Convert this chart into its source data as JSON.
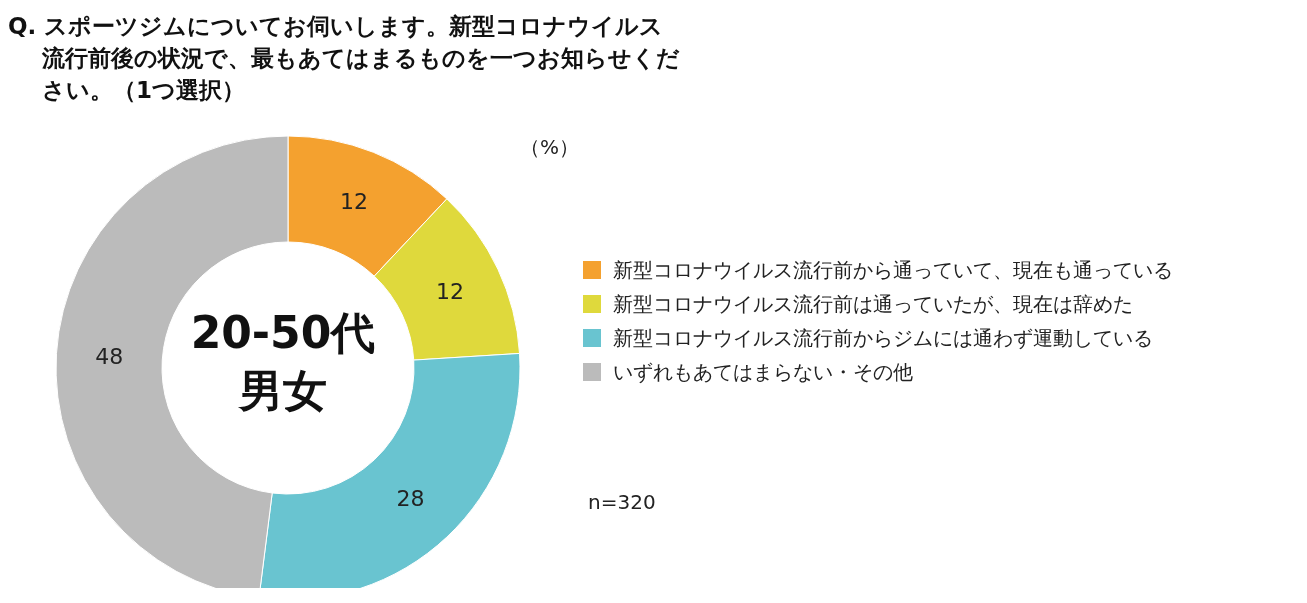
{
  "chart_data": {
    "type": "donut",
    "title": "Q. スポーツジムについてお伺いします。新型コロナウイルス流行前後の状況で、最もあてはまるものを一つお知らせください。（1つ選択）",
    "categories": [
      "新型コロナウイルス流行前から通っていて、現在も通っている",
      "新型コロナウイルス流行前は通っていたが、現在は辞めた",
      "新型コロナウイルス流行前からジムには通わず運動している",
      "いずれもあてはまらない・その他"
    ],
    "values": [
      12,
      12,
      28,
      48
    ],
    "colors": [
      "#f4a12f",
      "#dfd93c",
      "#69c4d0",
      "#bbbbbb"
    ],
    "data_labels": true,
    "legend": "right",
    "annotations": [
      "20-50代",
      "男女",
      "（%）",
      "n=320"
    ]
  }
}
